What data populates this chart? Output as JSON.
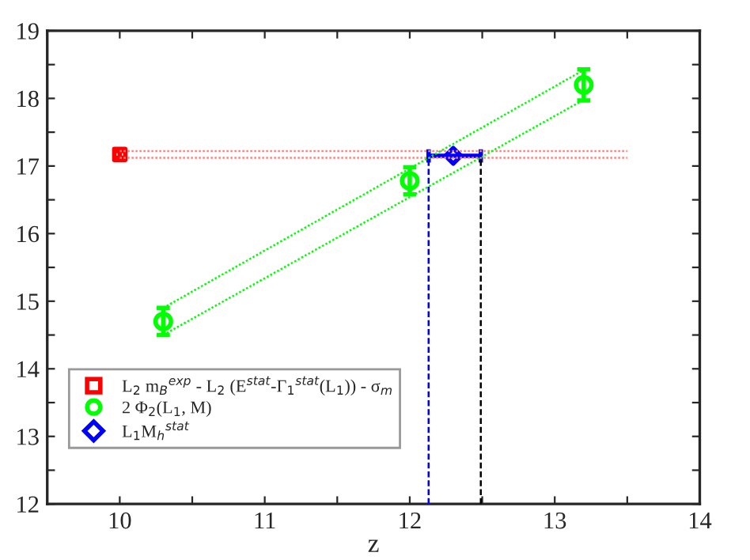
{
  "chart_data": {
    "type": "scatter",
    "xlabel": "z",
    "xlim": [
      9.5,
      14
    ],
    "ylim": [
      12,
      19
    ],
    "xticks": [
      10,
      {
        "value": 10.5,
        "label": null
      },
      11,
      {
        "value": 11.5,
        "label": null
      },
      12,
      {
        "value": 12.5,
        "label": null
      },
      13,
      {
        "value": 13.5,
        "label": null
      },
      14
    ],
    "yticks": [
      12,
      {
        "value": 12.5,
        "label": null
      },
      13,
      {
        "value": 13.5,
        "label": null
      },
      14,
      {
        "value": 14.5,
        "label": null
      },
      15,
      {
        "value": 15.5,
        "label": null
      },
      16,
      {
        "value": 16.5,
        "label": null
      },
      17,
      {
        "value": 17.5,
        "label": null
      },
      18,
      {
        "value": 18.5,
        "label": null
      },
      19
    ],
    "grid": false,
    "legend": "bottom left",
    "series": [
      {
        "type": "line",
        "color": "#ff8080",
        "line_style": "dotted",
        "marker": "none",
        "x": [
          10,
          13.5
        ],
        "values": [
          17.22,
          17.22
        ]
      },
      {
        "type": "line",
        "color": "#ff8080",
        "line_style": "dotted",
        "marker": "none",
        "x": [
          10,
          13.5
        ],
        "values": [
          17.12,
          17.12
        ]
      },
      {
        "type": "line",
        "color": "#00ff00",
        "line_style": "dotted",
        "marker": "none",
        "x": [
          10.3,
          13.2
        ],
        "values": [
          14.9,
          18.42
        ]
      },
      {
        "type": "line",
        "color": "#00ff00",
        "line_style": "dotted",
        "marker": "none",
        "x": [
          10.3,
          13.2
        ],
        "values": [
          14.5,
          17.98
        ]
      },
      {
        "type": "line",
        "color": "#0000ff",
        "line_style": "dashed",
        "marker": "none",
        "x": [
          12.13,
          12.13
        ],
        "values": [
          12,
          17.15
        ]
      },
      {
        "type": "line",
        "color": "#000000",
        "line_style": "dashed",
        "marker": "none",
        "x": [
          12.49,
          12.49
        ],
        "values": [
          12,
          17.15
        ]
      },
      {
        "name": "L$_{2}$ m$_{B}$$^{exp}$ - L$_{2}$ (E$^{stat}$-Γ$_{1}$$^{stat}$(L$_{1}$)) - σ$_{m}$",
        "color": "#ff0000",
        "marker": "square",
        "x": [
          10
        ],
        "values": [
          17.17
        ],
        "errors": [
          0.05
        ]
      },
      {
        "name": "2 Φ$_{2}$(L$_{1}$, M)",
        "color": "#00ff00",
        "marker": "circle",
        "x": [
          10.3,
          12,
          13.2
        ],
        "values": [
          14.7,
          16.78,
          18.2
        ],
        "errors": [
          0.2,
          0.2,
          0.23
        ]
      },
      {
        "name": "L$_{1}$M$_{h}$$^{stat}$",
        "color": "#0000ff",
        "marker": "diamond",
        "x": [
          12.3
        ],
        "values": [
          17.15
        ],
        "xerrors": [
          [
            12.13,
            12.49
          ]
        ]
      }
    ]
  }
}
